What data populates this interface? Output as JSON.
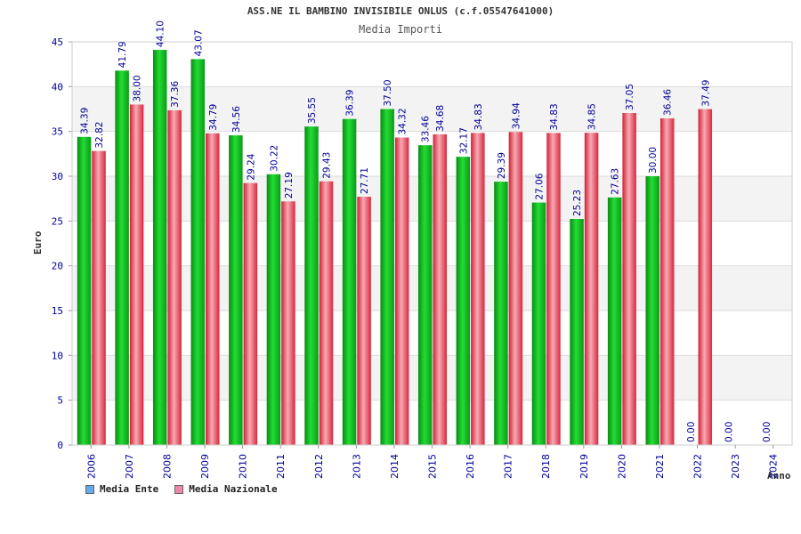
{
  "page": {
    "title": "ASS.NE IL BAMBINO INVISIBILE ONLUS (c.f.05547641000)",
    "subtitle": "Media Importi",
    "y_axis_label": "Euro",
    "x_axis_label": "Anno"
  },
  "legend": [
    {
      "label": "Media Ente",
      "color": "#66aaee"
    },
    {
      "label": "Media Nazionale",
      "color": "#ee88aa"
    }
  ],
  "colors": {
    "ente_bar": "#11bb22",
    "nazionale_bar": "#e8485a",
    "axis_text": "#000099"
  },
  "chart_data": {
    "type": "bar",
    "title": "ASS.NE IL BAMBINO INVISIBILE ONLUS (c.f.05547641000)",
    "subtitle": "Media Importi",
    "xlabel": "Anno",
    "ylabel": "Euro",
    "ylim": [
      0,
      45
    ],
    "yticks": [
      0,
      5,
      10,
      15,
      20,
      25,
      30,
      35,
      40,
      45
    ],
    "grid": true,
    "legend_position": "bottom-left",
    "categories": [
      "2006",
      "2007",
      "2008",
      "2009",
      "2010",
      "2011",
      "2012",
      "2013",
      "2014",
      "2015",
      "2016",
      "2017",
      "2018",
      "2019",
      "2020",
      "2021",
      "2022",
      "2023",
      "2024"
    ],
    "series": [
      {
        "name": "Media Ente",
        "values": [
          34.39,
          41.79,
          44.1,
          43.07,
          34.56,
          30.22,
          35.55,
          36.39,
          37.5,
          33.46,
          32.17,
          29.39,
          27.06,
          25.23,
          27.63,
          30.0,
          0.0,
          0.0,
          0.0
        ]
      },
      {
        "name": "Media Nazionale",
        "values": [
          32.82,
          38.0,
          37.36,
          34.79,
          29.24,
          27.19,
          29.43,
          27.71,
          34.32,
          34.68,
          34.83,
          34.94,
          34.83,
          34.85,
          37.05,
          36.46,
          37.49,
          null,
          null
        ]
      }
    ]
  }
}
